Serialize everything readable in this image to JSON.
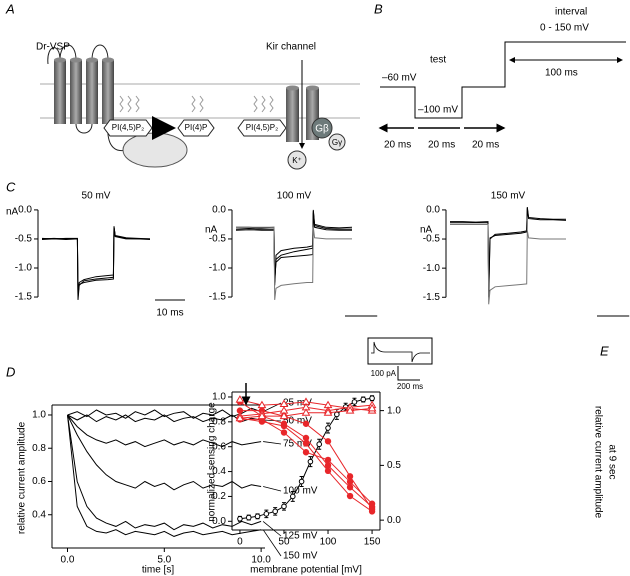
{
  "panel_labels": {
    "a": "A",
    "b": "B",
    "c": "C",
    "d": "D",
    "e": "E"
  },
  "panel_a": {
    "vsp": "Dr-VSP",
    "kir": "Kir channel",
    "lipid_1": "PI(4,5)P₂",
    "lipid_2": "PI(4)P",
    "lipid_3": "PI(4,5)P₂",
    "k": "K⁺",
    "g_beta": "Gβ",
    "g_gamma": "Gγ"
  },
  "panel_b": {
    "interval": "interval",
    "interval_range": "0 - 150 mV",
    "interval_duration": "100 ms",
    "test": "test",
    "holding": "–60 mV",
    "test_level": "–100 mV",
    "step_1": "20 ms",
    "step_2": "20 ms",
    "step_3": "20 ms"
  },
  "chart_data": [
    {
      "type": "line",
      "title": "50 mV",
      "y_label": "nA",
      "x": [
        0,
        4,
        8,
        11.8,
        12,
        12.4,
        14,
        18,
        22,
        23.8,
        24,
        24.4,
        28,
        32,
        36
      ],
      "xlim": [
        0,
        36
      ],
      "ylim": [
        -1.62,
        0.05
      ],
      "yticks": [
        {
          "value": 0,
          "label": "0.0"
        },
        {
          "value": -0.5,
          "label": "-0.5"
        },
        {
          "value": -1,
          "label": "-1.0"
        },
        {
          "value": -1.5,
          "label": "-1.5"
        }
      ],
      "scale_bar": {
        "value": 10,
        "label": "10 ms"
      },
      "series": [
        {
          "color": "#000000",
          "values": [
            -0.5,
            -0.49,
            -0.5,
            -0.5,
            -1.55,
            -1.3,
            -1.22,
            -1.19,
            -1.17,
            -1.16,
            -0.28,
            -0.45,
            -0.49,
            -0.5,
            -0.5
          ]
        },
        {
          "color": "#000000",
          "values": [
            -0.51,
            -0.5,
            -0.51,
            -0.5,
            -1.5,
            -1.25,
            -1.2,
            -1.15,
            -1.13,
            -1.12,
            -0.3,
            -0.46,
            -0.5,
            -0.5,
            -0.51
          ]
        },
        {
          "color": "#000000",
          "values": [
            -0.49,
            -0.5,
            -0.49,
            -0.49,
            -1.45,
            -1.28,
            -1.25,
            -1.21,
            -1.2,
            -1.19,
            -0.3,
            -0.44,
            -0.48,
            -0.49,
            -0.5
          ]
        }
      ]
    },
    {
      "type": "line",
      "title": "100 mV",
      "y_label": "nA",
      "x": [
        0,
        4,
        8,
        11.8,
        12,
        12.4,
        14,
        18,
        22,
        23.8,
        24,
        24.4,
        28,
        32,
        36
      ],
      "xlim": [
        0,
        36
      ],
      "ylim": [
        -1.62,
        0.05
      ],
      "yticks": [
        {
          "value": 0,
          "label": "0.0"
        },
        {
          "value": -0.5,
          "label": "-0.5"
        },
        {
          "value": -1,
          "label": "-1.0"
        },
        {
          "value": -1.5,
          "label": "-1.5"
        }
      ],
      "series": [
        {
          "color": "#000000",
          "values": [
            -0.3,
            -0.3,
            -0.31,
            -0.3,
            -1.3,
            -0.85,
            -0.78,
            -0.72,
            -0.68,
            -0.66,
            0,
            -0.25,
            -0.3,
            -0.31,
            -0.3
          ]
        },
        {
          "color": "#000000",
          "values": [
            -0.35,
            -0.34,
            -0.35,
            -0.35,
            -1.2,
            -0.9,
            -0.82,
            -0.8,
            -0.78,
            -0.77,
            -0.05,
            -0.3,
            -0.34,
            -0.35,
            -0.35
          ]
        },
        {
          "color": "#000000",
          "values": [
            -0.33,
            -0.32,
            -0.33,
            -0.33,
            -1.25,
            -0.78,
            -0.7,
            -0.66,
            -0.64,
            -0.62,
            -0.02,
            -0.27,
            -0.32,
            -0.33,
            -0.33
          ]
        },
        {
          "color": "#777777",
          "values": [
            -0.3,
            -0.3,
            -0.3,
            -0.3,
            -1.55,
            -1.35,
            -1.3,
            -1.27,
            -1.25,
            -1.25,
            -0.3,
            -0.48,
            -0.5,
            -0.5,
            -0.5
          ]
        }
      ]
    },
    {
      "type": "line",
      "title": "150 mV",
      "y_label": "nA",
      "x": [
        0,
        4,
        8,
        11.8,
        12,
        12.4,
        14,
        18,
        22,
        23.8,
        24,
        24.4,
        28,
        32,
        36
      ],
      "xlim": [
        0,
        36
      ],
      "ylim": [
        -1.65,
        0.05
      ],
      "yticks": [
        {
          "value": 0,
          "label": "0.0"
        },
        {
          "value": -0.5,
          "label": "-0.5"
        },
        {
          "value": -1,
          "label": "-1.0"
        },
        {
          "value": -1.5,
          "label": "-1.5"
        }
      ],
      "series": [
        {
          "color": "#000000",
          "values": [
            -0.2,
            -0.2,
            -0.21,
            -0.2,
            -1.5,
            -0.5,
            -0.42,
            -0.4,
            -0.38,
            -0.36,
            0.05,
            -0.13,
            -0.15,
            -0.16,
            -0.16
          ]
        },
        {
          "color": "#000000",
          "values": [
            -0.22,
            -0.22,
            -0.22,
            -0.22,
            -1.4,
            -0.48,
            -0.44,
            -0.42,
            -0.4,
            -0.38,
            0.03,
            -0.15,
            -0.17,
            -0.17,
            -0.18
          ]
        },
        {
          "color": "#777777",
          "values": [
            -0.25,
            -0.25,
            -0.25,
            -0.25,
            -1.62,
            -1.38,
            -1.32,
            -1.3,
            -1.28,
            -1.27,
            -0.35,
            -0.48,
            -0.5,
            -0.5,
            -0.5
          ]
        }
      ]
    },
    {
      "type": "line",
      "x_label": "time [s]",
      "y_label": "relative current amplitude",
      "x": [
        0,
        0.5,
        1,
        1.5,
        2,
        2.5,
        3,
        3.5,
        4,
        4.5,
        5,
        5.5,
        6,
        6.5,
        7,
        7.5,
        8,
        8.5,
        9,
        9.5,
        10
      ],
      "xlim": [
        -0.8,
        10.2
      ],
      "ylim": [
        0.2,
        1.06
      ],
      "xticks": [
        {
          "value": 0,
          "label": "0.0"
        },
        {
          "value": 5,
          "label": "5.0"
        },
        {
          "value": 10,
          "label": "10.0"
        }
      ],
      "yticks": [
        0.4,
        0.6,
        0.8,
        {
          "value": 1,
          "label": "1.0"
        }
      ],
      "series": [
        {
          "name": "25 mV",
          "color": "#000000",
          "values": [
            1.0,
            1.02,
            0.99,
            1.03,
            1.0,
            1.01,
            0.98,
            1.02,
            1.0,
            1.03,
            0.99,
            1.01,
            1.02,
            0.98,
            1.01,
            1.0,
            1.03,
            0.99,
            1.01,
            1.04,
            1.02
          ]
        },
        {
          "name": "50 mV",
          "color": "#000000",
          "values": [
            1.0,
            0.97,
            1.0,
            0.96,
            0.99,
            0.97,
            1.0,
            0.96,
            0.98,
            0.97,
            1.0,
            0.96,
            0.98,
            0.99,
            0.96,
            0.98,
            0.97,
            1.0,
            0.96,
            0.98,
            0.97
          ]
        },
        {
          "name": "75 mV",
          "color": "#000000",
          "values": [
            1.0,
            0.93,
            0.88,
            0.85,
            0.83,
            0.85,
            0.82,
            0.84,
            0.81,
            0.83,
            0.85,
            0.82,
            0.84,
            0.82,
            0.85,
            0.83,
            0.81,
            0.84,
            0.82,
            0.83,
            0.84
          ]
        },
        {
          "name": "100 mV",
          "color": "#000000",
          "values": [
            1.0,
            0.88,
            0.78,
            0.7,
            0.64,
            0.6,
            0.58,
            0.56,
            0.6,
            0.57,
            0.59,
            0.55,
            0.58,
            0.6,
            0.56,
            0.58,
            0.57,
            0.6,
            0.56,
            0.58,
            0.57
          ]
        },
        {
          "name": "125 mV",
          "color": "#000000",
          "values": [
            1.0,
            0.6,
            0.45,
            0.38,
            0.35,
            0.33,
            0.36,
            0.32,
            0.34,
            0.33,
            0.35,
            0.31,
            0.34,
            0.33,
            0.35,
            0.32,
            0.34,
            0.33,
            0.36,
            0.34,
            0.36
          ]
        },
        {
          "name": "150 mV",
          "color": "#000000",
          "values": [
            1.0,
            0.45,
            0.33,
            0.3,
            0.29,
            0.31,
            0.28,
            0.3,
            0.29,
            0.28,
            0.3,
            0.27,
            0.29,
            0.3,
            0.28,
            0.29,
            0.3,
            0.28,
            0.29,
            0.3,
            0.31
          ]
        }
      ]
    },
    {
      "type": "line",
      "x_label": "membrane potential [mV]",
      "y_label": "normalized sensing charge",
      "y2_label": [
        "relative current amplitude",
        "at 9 sec"
      ],
      "inset": {
        "y_scale": "100 pA",
        "x_scale": "200 ms"
      },
      "xlim": [
        -9,
        159
      ],
      "ylim": [
        -0.07,
        1.04
      ],
      "y2lim": [
        -0.09,
        1.17
      ],
      "xticks": [
        0,
        50,
        100,
        150
      ],
      "yticks": [
        {
          "value": 0,
          "label": "0.0"
        },
        0.2,
        0.4,
        0.6,
        0.8,
        {
          "value": 1,
          "label": "1.0"
        }
      ],
      "y2ticks": [
        {
          "value": 0,
          "label": "0.0"
        },
        0.5,
        {
          "value": 1,
          "label": "1.0"
        }
      ],
      "series": [
        {
          "color": "#000000",
          "marker": "open-circle",
          "x": [
            0,
            10,
            20,
            30,
            40,
            50,
            60,
            70,
            80,
            90,
            100,
            110,
            120,
            130,
            140,
            150
          ],
          "values": [
            0.02,
            0.03,
            0.04,
            0.06,
            0.08,
            0.12,
            0.2,
            0.32,
            0.48,
            0.62,
            0.75,
            0.86,
            0.92,
            0.96,
            0.98,
            0.99
          ],
          "errors": [
            0.02,
            0.02,
            0.02,
            0.03,
            0.03,
            0.03,
            0.04,
            0.04,
            0.04,
            0.04,
            0.04,
            0.04,
            0.03,
            0.03,
            0.02,
            0.02
          ]
        },
        {
          "color": "#e8262a",
          "marker": "circle",
          "axis": "y2",
          "x": [
            0,
            25,
            50,
            75,
            100,
            125,
            150
          ],
          "values": [
            1.08,
            0.95,
            0.88,
            0.75,
            0.5,
            0.3,
            0.12
          ]
        },
        {
          "color": "#e8262a",
          "marker": "circle",
          "axis": "y2",
          "x": [
            0,
            25,
            50,
            75,
            100,
            125,
            150
          ],
          "values": [
            0.93,
            0.9,
            0.86,
            0.7,
            0.45,
            0.22,
            0.08
          ]
        },
        {
          "color": "#e8262a",
          "marker": "circle",
          "axis": "y2",
          "x": [
            0,
            25,
            50,
            75,
            100,
            125,
            150
          ],
          "values": [
            0.92,
            0.92,
            0.8,
            0.62,
            0.55,
            0.35,
            0.15
          ]
        },
        {
          "color": "#e8262a",
          "marker": "circle",
          "axis": "y2",
          "x": [
            0,
            25,
            50,
            75,
            100,
            125,
            150
          ],
          "values": [
            1.0,
            1.0,
            0.95,
            0.88,
            0.72,
            0.4,
            0.1
          ]
        },
        {
          "color": "#e8262a",
          "marker": "open-triangle",
          "axis": "y2",
          "x": [
            0,
            25,
            50,
            75,
            100,
            125,
            150
          ],
          "values": [
            1.1,
            1.05,
            1.06,
            1.08,
            1.05,
            1.02,
            1.0
          ]
        },
        {
          "color": "#e8262a",
          "marker": "open-triangle",
          "axis": "y2",
          "x": [
            0,
            25,
            50,
            75,
            100,
            125,
            150
          ],
          "values": [
            0.95,
            0.97,
            1.0,
            1.03,
            1.0,
            1.03,
            1.05
          ]
        },
        {
          "color": "#e8262a",
          "marker": "open-triangle",
          "axis": "y2",
          "x": [
            0,
            25,
            50,
            75,
            100,
            125,
            150
          ],
          "values": [
            0.93,
            0.95,
            0.95,
            0.98,
            0.98,
            1.0,
            1.02
          ]
        }
      ]
    }
  ]
}
